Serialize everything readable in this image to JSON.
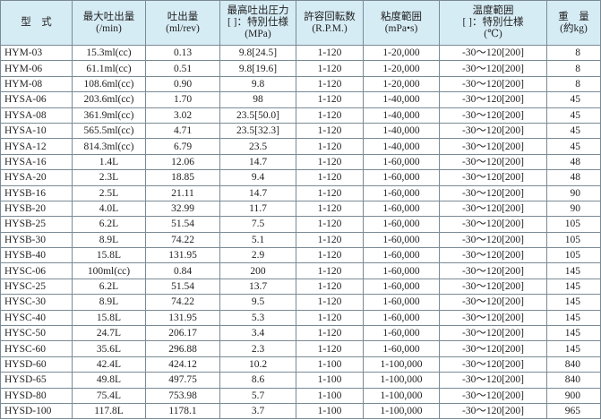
{
  "table": {
    "header": [
      [
        "型　式"
      ],
      [
        "最大吐出量",
        "(/min)"
      ],
      [
        "吐出量",
        "(ml/rev)"
      ],
      [
        "最高吐出圧力",
        "[ ]：特別仕様",
        "(MPa)"
      ],
      [
        "許容回転数",
        "(R.P.M.)"
      ],
      [
        "粘度範囲",
        "(mPa•s)"
      ],
      [
        "温度範囲",
        "[ ]：特別仕様",
        "(℃)"
      ],
      [
        "重　量",
        "(約kg)"
      ]
    ],
    "rows": [
      [
        "HYM-03",
        "15.3ml(cc)",
        "0.13",
        "9.8[24.5]",
        "1-120",
        "1-20,000",
        "-30～120[200]",
        "8"
      ],
      [
        "HYM-06",
        "61.1ml(cc)",
        "0.51",
        "9.8[19.6]",
        "1-120",
        "1-20,000",
        "-30～120[200]",
        "8"
      ],
      [
        "HYM-08",
        "108.6ml(cc)",
        "0.90",
        "9.8",
        "1-120",
        "1-20,000",
        "-30～120[200]",
        "8"
      ],
      [
        "HYSA-06",
        "203.6ml(cc)",
        "1.70",
        "98",
        "1-120",
        "1-40,000",
        "-30～120[200]",
        "45"
      ],
      [
        "HYSA-08",
        "361.9ml(cc)",
        "3.02",
        "23.5[50.0]",
        "1-120",
        "1-40,000",
        "-30～120[200]",
        "45"
      ],
      [
        "HYSA-10",
        "565.5ml(cc)",
        "4.71",
        "23.5[32.3]",
        "1-120",
        "1-40,000",
        "-30～120[200]",
        "45"
      ],
      [
        "HYSA-12",
        "814.3ml(cc)",
        "6.79",
        "23.5",
        "1-120",
        "1-40,000",
        "-30～120[200]",
        "45"
      ],
      [
        "HYSA-16",
        "1.4L",
        "12.06",
        "14.7",
        "1-120",
        "1-60,000",
        "-30～120[200]",
        "48"
      ],
      [
        "HYSA-20",
        "2.3L",
        "18.85",
        "9.4",
        "1-120",
        "1-60,000",
        "-30～120[200]",
        "48"
      ],
      [
        "HYSB-16",
        "2.5L",
        "21.11",
        "14.7",
        "1-120",
        "1-60,000",
        "-30～120[200]",
        "90"
      ],
      [
        "HYSB-20",
        "4.0L",
        "32.99",
        "11.7",
        "1-120",
        "1-60,000",
        "-30～120[200]",
        "90"
      ],
      [
        "HYSB-25",
        "6.2L",
        "51.54",
        "7.5",
        "1-120",
        "1-60,000",
        "-30～120[200]",
        "105"
      ],
      [
        "HYSB-30",
        "8.9L",
        "74.22",
        "5.1",
        "1-120",
        "1-60,000",
        "-30～120[200]",
        "105"
      ],
      [
        "HYSB-40",
        "15.8L",
        "131.95",
        "2.9",
        "1-120",
        "1-60,000",
        "-30～120[200]",
        "105"
      ],
      [
        "HYSC-06",
        "100ml(cc)",
        "0.84",
        "200",
        "1-120",
        "1-60,000",
        "-30～120[200]",
        "145"
      ],
      [
        "HYSC-25",
        "6.2L",
        "51.54",
        "13.7",
        "1-120",
        "1-60,000",
        "-30～120[200]",
        "145"
      ],
      [
        "HYSC-30",
        "8.9L",
        "74.22",
        "9.5",
        "1-120",
        "1-60,000",
        "-30～120[200]",
        "145"
      ],
      [
        "HYSC-40",
        "15.8L",
        "131.95",
        "5.3",
        "1-120",
        "1-60,000",
        "-30～120[200]",
        "145"
      ],
      [
        "HYSC-50",
        "24.7L",
        "206.17",
        "3.4",
        "1-120",
        "1-60,000",
        "-30～120[200]",
        "145"
      ],
      [
        "HYSC-60",
        "35.6L",
        "296.88",
        "2.3",
        "1-120",
        "1-60,000",
        "-30～120[200]",
        "145"
      ],
      [
        "HYSD-60",
        "42.4L",
        "424.12",
        "10.2",
        "1-100",
        "1-100,000",
        "-30～120[200]",
        "840"
      ],
      [
        "HYSD-65",
        "49.8L",
        "497.75",
        "8.6",
        "1-100",
        "1-100,000",
        "-30～120[200]",
        "840"
      ],
      [
        "HYSD-80",
        "75.4L",
        "753.98",
        "5.7",
        "1-100",
        "1-100,000",
        "-30～120[200]",
        "900"
      ],
      [
        "HYSD-100",
        "117.8L",
        "1178.1",
        "3.7",
        "1-100",
        "1-100,000",
        "-30～120[200]",
        "965"
      ]
    ]
  }
}
